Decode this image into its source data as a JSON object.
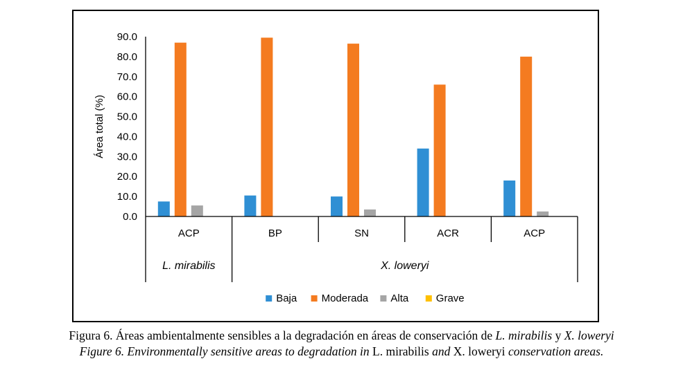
{
  "chart_data": {
    "type": "bar",
    "ylabel": "Área total (%)",
    "ylim": [
      0,
      90
    ],
    "ytick_step": 10,
    "yticks": [
      "0.0",
      "10.0",
      "20.0",
      "30.0",
      "40.0",
      "50.0",
      "60.0",
      "70.0",
      "80.0",
      "90.0"
    ],
    "categories": [
      "ACP",
      "BP",
      "SN",
      "ACR",
      "ACP"
    ],
    "groups": [
      {
        "label": "L. mirabilis",
        "categories": [
          0
        ]
      },
      {
        "label": "X. loweryi",
        "categories": [
          1,
          2,
          3,
          4
        ]
      }
    ],
    "series": [
      {
        "name": "Baja",
        "color": "#2f8fd4",
        "values": [
          7.5,
          10.5,
          10.0,
          34.0,
          18.0
        ]
      },
      {
        "name": "Moderada",
        "color": "#f47b20",
        "values": [
          87.0,
          89.5,
          86.5,
          66.0,
          80.0
        ]
      },
      {
        "name": "Alta",
        "color": "#a5a5a5",
        "values": [
          5.5,
          0,
          3.5,
          0,
          2.5
        ]
      },
      {
        "name": "Grave",
        "color": "#ffc000",
        "values": [
          0,
          0,
          0,
          0,
          0
        ]
      }
    ],
    "legend": "bottom",
    "grid": false
  },
  "caption": {
    "es_prefix": "Figura 6. Áreas ambientalmente sensibles a la degradación en áreas de conservación de ",
    "es_species1": "L. mirabilis",
    "es_and": " y ",
    "es_species2": "X. loweryi",
    "en_prefix": "Figure 6. Environmentally sensitive areas to degradation in ",
    "en_species1": "L. mirabilis",
    "en_and": " and ",
    "en_species2": "X. loweryi",
    "en_suffix": " conservation areas."
  }
}
